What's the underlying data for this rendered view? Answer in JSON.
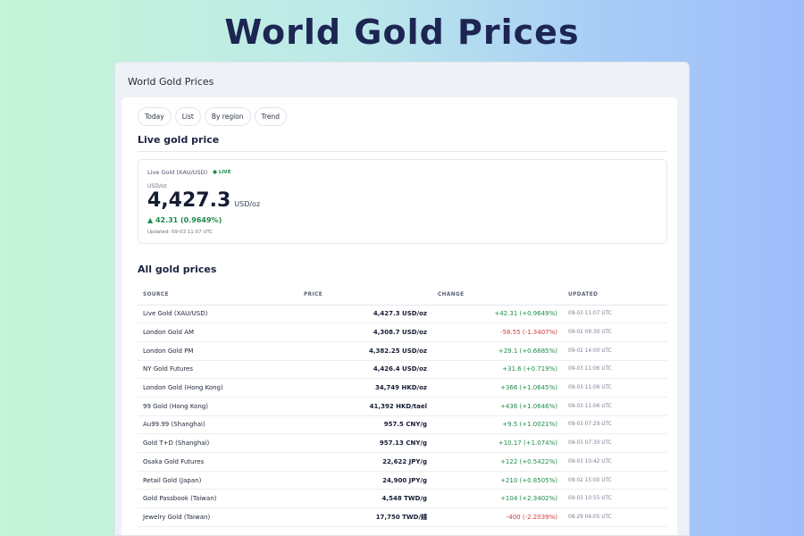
{
  "hero": {
    "title": "World Gold Prices"
  },
  "window": {
    "title": "World Gold Prices"
  },
  "tabs": [
    {
      "label": "Today"
    },
    {
      "label": "List"
    },
    {
      "label": "By region"
    },
    {
      "label": "Trend"
    }
  ],
  "live": {
    "section_title": "Live gold price",
    "name": "Live Gold (XAU/USD)",
    "badge": "● LIVE",
    "unit_small": "USD/oz",
    "price": "4,427.3",
    "unit": "USD/oz",
    "change": "▲ 42.31 (0.9649%)",
    "updated": "Updated: 09-03 11:07 UTC"
  },
  "all_prices": {
    "section_title": "All gold prices",
    "headers": {
      "source": "SOURCE",
      "price": "PRICE",
      "change": "CHANGE",
      "updated": "UPDATED"
    },
    "rows": [
      {
        "source": "Live Gold (XAU/USD)",
        "price": "4,427.3 USD/oz",
        "change": "+42.31 (+0.9649%)",
        "direction": "up",
        "updated": "09-03 11:07 UTC"
      },
      {
        "source": "London Gold AM",
        "price": "4,308.7 USD/oz",
        "change": "-58.55 (-1.3407%)",
        "direction": "down",
        "updated": "09-02 09:30 UTC"
      },
      {
        "source": "London Gold PM",
        "price": "4,382.25 USD/oz",
        "change": "+29.1 (+0.6685%)",
        "direction": "up",
        "updated": "09-02 14:00 UTC"
      },
      {
        "source": "NY Gold Futures",
        "price": "4,426.4 USD/oz",
        "change": "+31.6 (+0.719%)",
        "direction": "up",
        "updated": "09-03 11:06 UTC"
      },
      {
        "source": "London Gold (Hong Kong)",
        "price": "34,749 HKD/oz",
        "change": "+366 (+1.0645%)",
        "direction": "up",
        "updated": "09-03 11:06 UTC"
      },
      {
        "source": "99 Gold (Hong Kong)",
        "price": "41,392 HKD/tael",
        "change": "+436 (+1.0646%)",
        "direction": "up",
        "updated": "09-03 11:06 UTC"
      },
      {
        "source": "Au99.99 (Shanghai)",
        "price": "957.5 CNY/g",
        "change": "+9.5 (+1.0021%)",
        "direction": "up",
        "updated": "09-03 07:29 UTC"
      },
      {
        "source": "Gold T+D (Shanghai)",
        "price": "957.13 CNY/g",
        "change": "+10.17 (+1.074%)",
        "direction": "up",
        "updated": "09-03 07:30 UTC"
      },
      {
        "source": "Osaka Gold Futures",
        "price": "22,622 JPY/g",
        "change": "+122 (+0.5422%)",
        "direction": "up",
        "updated": "09-03 10:42 UTC"
      },
      {
        "source": "Retail Gold (Japan)",
        "price": "24,900 JPY/g",
        "change": "+210 (+0.8505%)",
        "direction": "up",
        "updated": "09-02 15:00 UTC"
      },
      {
        "source": "Gold Passbook (Taiwan)",
        "price": "4,548 TWD/g",
        "change": "+104 (+2.3402%)",
        "direction": "up",
        "updated": "09-03 10:55 UTC"
      },
      {
        "source": "Jewelry Gold (Taiwan)",
        "price": "17,750 TWD/錢",
        "change": "-400 (-2.2039%)",
        "direction": "down",
        "updated": "08-29 04:05 UTC"
      }
    ]
  },
  "colors": {
    "up": "#1f8a4c",
    "down": "#d23a3a",
    "accent": "#1d2553"
  }
}
